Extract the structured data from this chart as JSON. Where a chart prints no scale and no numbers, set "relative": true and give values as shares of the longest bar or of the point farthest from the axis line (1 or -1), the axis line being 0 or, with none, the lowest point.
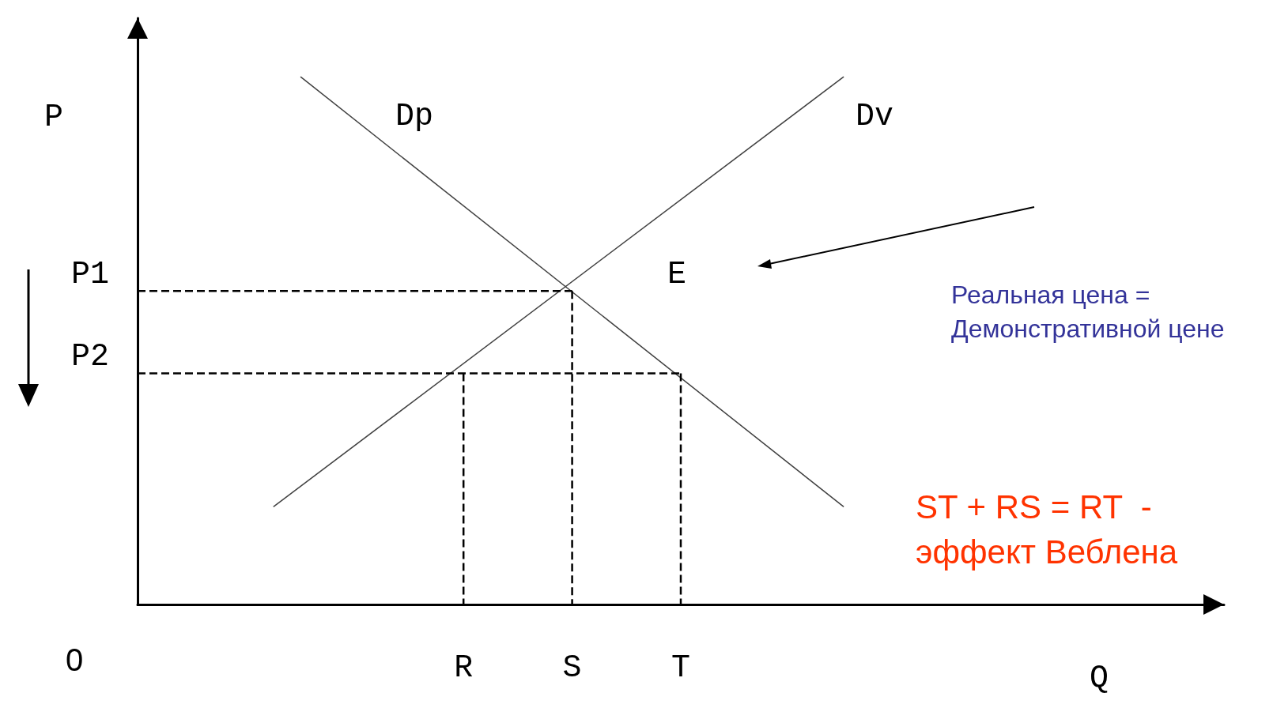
{
  "chart_data": {
    "type": "line",
    "relative": true,
    "xlabel": "Q",
    "ylabel": "P",
    "legend": false,
    "grid": false,
    "marker": "none",
    "categories": [
      null,
      null,
      null,
      null,
      null,
      null,
      null,
      null,
      null,
      null,
      null,
      null,
      "R",
      null,
      null,
      null,
      "S",
      null,
      null,
      null,
      "T",
      null,
      null,
      null,
      null,
      null,
      null,
      null,
      null,
      null,
      null,
      null,
      null,
      null,
      null,
      null,
      null,
      null,
      null,
      null,
      null
    ],
    "series": [
      {
        "name": "Dp",
        "color": "#404040",
        "values": [
          null,
          null,
          null,
          null,
          null,
          null,
          1,
          null,
          null,
          null,
          null,
          null,
          null,
          null,
          null,
          null,
          null,
          null,
          null,
          null,
          null,
          null,
          null,
          null,
          null,
          null,
          0.185,
          null,
          null,
          null,
          null,
          null,
          null,
          null,
          null,
          null,
          null,
          null,
          null,
          null,
          null
        ]
      },
      {
        "name": "Dv",
        "color": "#404040",
        "values": [
          null,
          null,
          null,
          null,
          null,
          0.185,
          null,
          null,
          null,
          null,
          null,
          null,
          null,
          null,
          null,
          null,
          null,
          null,
          null,
          null,
          null,
          null,
          null,
          null,
          null,
          null,
          1,
          null,
          null,
          null,
          null,
          null,
          null,
          null,
          null,
          null,
          null,
          null,
          null,
          null,
          null
        ]
      },
      {
        "color": "#000000",
        "line_style": "dashed",
        "values": [
          0.594,
          null,
          null,
          null,
          null,
          null,
          null,
          null,
          null,
          null,
          null,
          null,
          null,
          null,
          null,
          null,
          0.594,
          null,
          null,
          null,
          null,
          null,
          null,
          null,
          null,
          null,
          null,
          null,
          null,
          null,
          null,
          null,
          null,
          null,
          null,
          null,
          null,
          null,
          null,
          null,
          null
        ]
      },
      {
        "color": "#000000",
        "line_style": "dashed",
        "values": [
          0.438,
          null,
          null,
          null,
          null,
          null,
          null,
          null,
          null,
          null,
          null,
          null,
          null,
          null,
          null,
          null,
          null,
          null,
          null,
          null,
          0.438,
          null,
          null,
          null,
          null,
          null,
          null,
          null,
          null,
          null,
          null,
          null,
          null,
          null,
          null,
          null,
          null,
          null,
          null,
          null,
          null
        ]
      },
      {
        "color": "#000000",
        "line_style": "dashed",
        "x": [
          "S",
          "S"
        ],
        "values": [
          0.594,
          0
        ]
      },
      {
        "color": "#000000",
        "line_style": "dashed",
        "x": [
          "T",
          "T"
        ],
        "values": [
          0.438,
          0
        ]
      },
      {
        "color": "#000000",
        "line_style": "dashed",
        "x": [
          "R",
          "R"
        ],
        "values": [
          0.438,
          0
        ]
      }
    ],
    "annotations": [
      "P1",
      "P2",
      "E",
      "0",
      "Реальная цена =\nДемонстративной цене",
      "ST + RS = RT  -\nэффект Веблена"
    ]
  }
}
